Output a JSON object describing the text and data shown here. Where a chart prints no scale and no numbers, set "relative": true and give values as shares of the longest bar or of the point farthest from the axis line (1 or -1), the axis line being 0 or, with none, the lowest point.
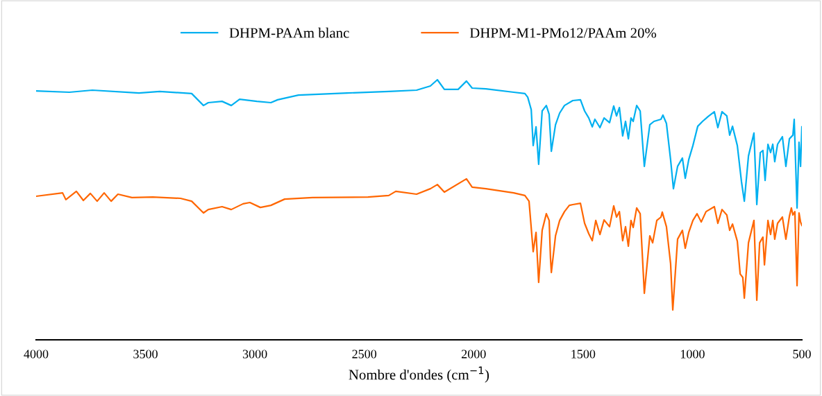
{
  "chart_data": {
    "type": "line",
    "relative": true,
    "xlabel": "Nombre d'ondes (cm$^{−1}$)",
    "xlim": [
      4000,
      500
    ],
    "xticks": [
      4000,
      3500,
      3000,
      2500,
      2000,
      1500,
      1000,
      500
    ],
    "legend": "top",
    "grid": false,
    "marker": "none",
    "line_style": "solid",
    "series": [
      {
        "name": "DHPM-PAAm blanc",
        "color": "#00b0f0",
        "x": [
          4000,
          3848,
          3743,
          3530,
          3435,
          3289,
          3235,
          3213,
          3150,
          3108,
          3070,
          2991,
          2927,
          2896,
          2801,
          2578,
          2388,
          2261,
          2198,
          2166,
          2134,
          2071,
          2033,
          2007,
          1944,
          1817,
          1766,
          1753,
          1737,
          1728,
          1715,
          1703,
          1687,
          1668,
          1655,
          1645,
          1626,
          1607,
          1585,
          1547,
          1512,
          1493,
          1474,
          1458,
          1446,
          1423,
          1404,
          1379,
          1360,
          1347,
          1334,
          1319,
          1306,
          1293,
          1281,
          1271,
          1255,
          1239,
          1220,
          1195,
          1176,
          1144,
          1135,
          1119,
          1100,
          1087,
          1068,
          1046,
          1033,
          1017,
          998,
          976,
          954,
          928,
          900,
          884,
          865,
          843,
          830,
          817,
          795,
          776,
          763,
          744,
          719,
          706,
          690,
          678,
          668,
          655,
          643,
          633,
          624,
          611,
          589,
          573,
          557,
          541,
          535,
          522,
          513,
          506,
          500
        ],
        "values": [
          0.957,
          0.952,
          0.96,
          0.949,
          0.955,
          0.947,
          0.901,
          0.912,
          0.917,
          0.901,
          0.925,
          0.917,
          0.912,
          0.923,
          0.941,
          0.949,
          0.955,
          0.96,
          0.976,
          1.0,
          0.963,
          0.963,
          0.995,
          0.968,
          0.965,
          0.952,
          0.947,
          0.933,
          0.885,
          0.747,
          0.819,
          0.675,
          0.88,
          0.901,
          0.867,
          0.725,
          0.827,
          0.872,
          0.901,
          0.92,
          0.923,
          0.88,
          0.853,
          0.819,
          0.848,
          0.816,
          0.853,
          0.835,
          0.899,
          0.861,
          0.893,
          0.784,
          0.84,
          0.773,
          0.853,
          0.84,
          0.901,
          0.88,
          0.667,
          0.827,
          0.84,
          0.848,
          0.864,
          0.832,
          0.693,
          0.581,
          0.667,
          0.699,
          0.621,
          0.693,
          0.747,
          0.821,
          0.84,
          0.859,
          0.877,
          0.816,
          0.877,
          0.861,
          0.787,
          0.821,
          0.747,
          0.608,
          0.533,
          0.707,
          0.795,
          0.52,
          0.72,
          0.728,
          0.613,
          0.752,
          0.72,
          0.752,
          0.685,
          0.752,
          0.781,
          0.667,
          0.773,
          0.787,
          0.848,
          0.507,
          0.76,
          0.667,
          0.819
        ]
      },
      {
        "name": "DHPM-M1-PMo12/PAAm 20%",
        "color": "#ff6600",
        "x": [
          4000,
          3879,
          3864,
          3816,
          3784,
          3752,
          3721,
          3689,
          3657,
          3626,
          3562,
          3467,
          3340,
          3289,
          3235,
          3213,
          3150,
          3108,
          3054,
          3023,
          2975,
          2927,
          2864,
          2737,
          2483,
          2388,
          2356,
          2261,
          2198,
          2166,
          2134,
          2033,
          2007,
          1944,
          1817,
          1766,
          1747,
          1728,
          1715,
          1703,
          1687,
          1668,
          1655,
          1649,
          1645,
          1626,
          1607,
          1585,
          1563,
          1547,
          1512,
          1493,
          1474,
          1458,
          1442,
          1423,
          1404,
          1379,
          1360,
          1347,
          1334,
          1319,
          1306,
          1293,
          1281,
          1271,
          1255,
          1239,
          1220,
          1195,
          1182,
          1163,
          1144,
          1138,
          1119,
          1100,
          1090,
          1068,
          1046,
          1033,
          1017,
          998,
          979,
          960,
          938,
          900,
          884,
          865,
          843,
          830,
          817,
          795,
          782,
          770,
          763,
          744,
          719,
          706,
          693,
          678,
          671,
          655,
          643,
          633,
          624,
          611,
          589,
          573,
          557,
          548,
          541,
          532,
          522,
          513,
          506,
          500
        ],
        "values": [
          0.552,
          0.565,
          0.539,
          0.571,
          0.536,
          0.563,
          0.533,
          0.565,
          0.533,
          0.56,
          0.547,
          0.549,
          0.544,
          0.533,
          0.488,
          0.501,
          0.512,
          0.501,
          0.523,
          0.528,
          0.509,
          0.517,
          0.541,
          0.547,
          0.549,
          0.555,
          0.571,
          0.56,
          0.581,
          0.597,
          0.568,
          0.619,
          0.587,
          0.581,
          0.565,
          0.555,
          0.533,
          0.339,
          0.413,
          0.221,
          0.421,
          0.485,
          0.459,
          0.315,
          0.259,
          0.4,
          0.459,
          0.493,
          0.517,
          0.52,
          0.525,
          0.448,
          0.408,
          0.381,
          0.459,
          0.405,
          0.461,
          0.435,
          0.515,
          0.472,
          0.493,
          0.381,
          0.435,
          0.36,
          0.459,
          0.432,
          0.507,
          0.485,
          0.179,
          0.4,
          0.373,
          0.459,
          0.472,
          0.491,
          0.435,
          0.293,
          0.115,
          0.387,
          0.421,
          0.352,
          0.413,
          0.459,
          0.485,
          0.453,
          0.493,
          0.512,
          0.448,
          0.501,
          0.48,
          0.421,
          0.445,
          0.379,
          0.253,
          0.24,
          0.16,
          0.373,
          0.459,
          0.152,
          0.373,
          0.395,
          0.288,
          0.459,
          0.405,
          0.459,
          0.387,
          0.448,
          0.472,
          0.387,
          0.475,
          0.507,
          0.48,
          0.493,
          0.208,
          0.488,
          0.453,
          0.44
        ]
      }
    ]
  }
}
